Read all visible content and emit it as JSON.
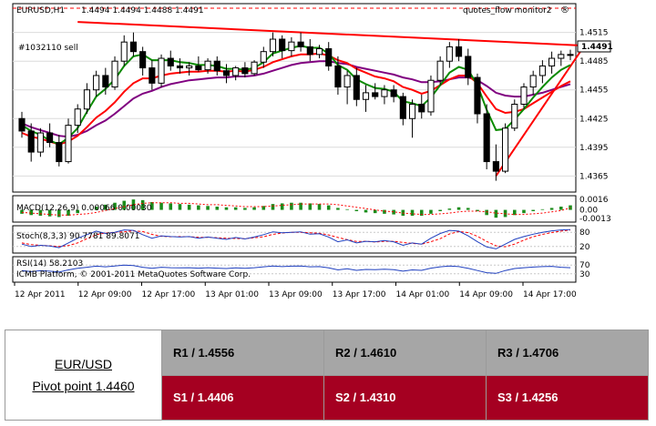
{
  "chart_data": {
    "type": "candlestick",
    "symbol_label": "EURUSD,H1",
    "ohlc_label": "1.4494 1.4494 1.4488 1.4491",
    "watermark": "quotes_flow  monitor2",
    "order_label": "#1032110 sell",
    "current_price": "1.4491",
    "ylim": [
      1.4352,
      1.4528
    ],
    "yticks": [
      "1.4515",
      "1.4485",
      "1.4455",
      "1.4425",
      "1.4395",
      "1.4365"
    ],
    "x_labels": [
      "12 Apr 2011",
      "12 Apr 09:00",
      "12 Apr 17:00",
      "13 Apr 01:00",
      "13 Apr 09:00",
      "13 Apr 17:00",
      "14 Apr 01:00",
      "14 Apr 09:00",
      "14 Apr 17:00"
    ],
    "candles": [
      [
        1.4425,
        1.4432,
        1.4405,
        1.4412
      ],
      [
        1.4412,
        1.442,
        1.438,
        1.439
      ],
      [
        1.439,
        1.4415,
        1.4385,
        1.441
      ],
      [
        1.441,
        1.442,
        1.4395,
        1.44
      ],
      [
        1.44,
        1.4408,
        1.4375,
        1.438
      ],
      [
        1.438,
        1.4425,
        1.4378,
        1.4418
      ],
      [
        1.4418,
        1.444,
        1.441,
        1.4435
      ],
      [
        1.4435,
        1.4462,
        1.443,
        1.4455
      ],
      [
        1.4455,
        1.4475,
        1.4448,
        1.447
      ],
      [
        1.447,
        1.4478,
        1.445,
        1.4458
      ],
      [
        1.4458,
        1.449,
        1.4455,
        1.4485
      ],
      [
        1.4485,
        1.4512,
        1.448,
        1.4505
      ],
      [
        1.4505,
        1.4515,
        1.449,
        1.4495
      ],
      [
        1.4495,
        1.45,
        1.447,
        1.4478
      ],
      [
        1.4478,
        1.4486,
        1.4455,
        1.4462
      ],
      [
        1.4462,
        1.4492,
        1.4458,
        1.4488
      ],
      [
        1.4488,
        1.4496,
        1.4475,
        1.448
      ],
      [
        1.448,
        1.4488,
        1.4472,
        1.4478
      ],
      [
        1.4478,
        1.4484,
        1.447,
        1.448
      ],
      [
        1.448,
        1.449,
        1.4474,
        1.4476
      ],
      [
        1.4476,
        1.4488,
        1.4472,
        1.4485
      ],
      [
        1.4485,
        1.449,
        1.447,
        1.4475
      ],
      [
        1.4475,
        1.4482,
        1.4462,
        1.447
      ],
      [
        1.447,
        1.448,
        1.4465,
        1.4478
      ],
      [
        1.4478,
        1.4484,
        1.4468,
        1.4472
      ],
      [
        1.4472,
        1.4486,
        1.447,
        1.4484
      ],
      [
        1.4484,
        1.45,
        1.4478,
        1.4495
      ],
      [
        1.4495,
        1.4515,
        1.449,
        1.4508
      ],
      [
        1.4508,
        1.4512,
        1.4488,
        1.4496
      ],
      [
        1.4496,
        1.451,
        1.449,
        1.4505
      ],
      [
        1.4505,
        1.4515,
        1.4495,
        1.45
      ],
      [
        1.45,
        1.4508,
        1.4485,
        1.4492
      ],
      [
        1.4492,
        1.4502,
        1.4488,
        1.4498
      ],
      [
        1.4498,
        1.4505,
        1.4475,
        1.448
      ],
      [
        1.448,
        1.449,
        1.445,
        1.4458
      ],
      [
        1.4458,
        1.4475,
        1.444,
        1.447
      ],
      [
        1.447,
        1.4478,
        1.4438,
        1.4445
      ],
      [
        1.4445,
        1.446,
        1.4432,
        1.4452
      ],
      [
        1.4452,
        1.4462,
        1.4445,
        1.4448
      ],
      [
        1.4448,
        1.446,
        1.444,
        1.4455
      ],
      [
        1.4455,
        1.446,
        1.4442,
        1.4448
      ],
      [
        1.4448,
        1.4452,
        1.4418,
        1.4425
      ],
      [
        1.4425,
        1.4445,
        1.4405,
        1.444
      ],
      [
        1.444,
        1.445,
        1.4425,
        1.4432
      ],
      [
        1.4432,
        1.447,
        1.4428,
        1.4465
      ],
      [
        1.4465,
        1.449,
        1.446,
        1.4485
      ],
      [
        1.4485,
        1.4505,
        1.4478,
        1.45
      ],
      [
        1.45,
        1.4508,
        1.4485,
        1.449
      ],
      [
        1.449,
        1.4498,
        1.446,
        1.4468
      ],
      [
        1.4468,
        1.4472,
        1.442,
        1.443
      ],
      [
        1.443,
        1.444,
        1.4372,
        1.438
      ],
      [
        1.438,
        1.4398,
        1.436,
        1.437
      ],
      [
        1.437,
        1.442,
        1.4368,
        1.4415
      ],
      [
        1.4415,
        1.4445,
        1.4412,
        1.444
      ],
      [
        1.444,
        1.4462,
        1.4435,
        1.4458
      ],
      [
        1.4458,
        1.4475,
        1.445,
        1.447
      ],
      [
        1.447,
        1.4486,
        1.4462,
        1.448
      ],
      [
        1.448,
        1.4495,
        1.4472,
        1.4488
      ],
      [
        1.4488,
        1.4496,
        1.448,
        1.4492
      ],
      [
        1.4492,
        1.4497,
        1.4486,
        1.4491
      ]
    ],
    "ma_fast_green": [
      1.4418,
      1.4412,
      1.4408,
      1.4402,
      1.4398,
      1.4405,
      1.4415,
      1.4432,
      1.4448,
      1.4456,
      1.4466,
      1.448,
      1.449,
      1.4492,
      1.4486,
      1.4486,
      1.4486,
      1.4484,
      1.4483,
      1.4481,
      1.4481,
      1.448,
      1.4477,
      1.4477,
      1.4476,
      1.4478,
      1.4484,
      1.4493,
      1.4496,
      1.4499,
      1.4501,
      1.4499,
      1.4499,
      1.4493,
      1.4481,
      1.4476,
      1.4466,
      1.4461,
      1.4457,
      1.4456,
      1.4453,
      1.4443,
      1.4441,
      1.4438,
      1.4447,
      1.446,
      1.4473,
      1.4479,
      1.4476,
      1.446,
      1.4434,
      1.4413,
      1.4414,
      1.4424,
      1.4435,
      1.4447,
      1.4458,
      1.4468,
      1.4476,
      1.4481
    ],
    "ma_mid_red": [
      1.441,
      1.4406,
      1.4404,
      1.4401,
      1.4398,
      1.4401,
      1.4407,
      1.4416,
      1.4426,
      1.4433,
      1.4442,
      1.4453,
      1.4462,
      1.4467,
      1.4467,
      1.447,
      1.4472,
      1.4473,
      1.4474,
      1.4474,
      1.4475,
      1.4475,
      1.4474,
      1.4475,
      1.4474,
      1.4476,
      1.4479,
      1.4484,
      1.4487,
      1.449,
      1.4492,
      1.4492,
      1.4493,
      1.4491,
      1.4486,
      1.4483,
      1.4477,
      1.4473,
      1.4469,
      1.4467,
      1.4464,
      1.4458,
      1.4455,
      1.4451,
      1.4454,
      1.446,
      1.4466,
      1.447,
      1.447,
      1.4462,
      1.4448,
      1.4435,
      1.4431,
      1.4432,
      1.4435,
      1.4441,
      1.4447,
      1.4453,
      1.4459,
      1.4464
    ],
    "ma_slow_purple": [
      1.442,
      1.4416,
      1.4413,
      1.441,
      1.4407,
      1.4406,
      1.4408,
      1.4412,
      1.4418,
      1.4423,
      1.443,
      1.4438,
      1.4446,
      1.4451,
      1.4454,
      1.4458,
      1.4461,
      1.4463,
      1.4465,
      1.4466,
      1.4467,
      1.4468,
      1.4468,
      1.4469,
      1.4469,
      1.447,
      1.4472,
      1.4475,
      1.4478,
      1.4481,
      1.4483,
      1.4484,
      1.4485,
      1.4485,
      1.4483,
      1.4482,
      1.4479,
      1.4477,
      1.4475,
      1.4473,
      1.4471,
      1.4468,
      1.4466,
      1.4463,
      1.4463,
      1.4464,
      1.4466,
      1.4468,
      1.4468,
      1.4465,
      1.4459,
      1.4452,
      1.4449,
      1.4448,
      1.4448,
      1.445,
      1.4452,
      1.4455,
      1.4458,
      1.4461
    ],
    "resistance_line": [
      [
        6,
        1.4526
      ],
      [
        59,
        1.449
      ]
    ],
    "support_line": [
      [
        51,
        1.4365
      ],
      [
        59,
        1.4485
      ]
    ],
    "macd": {
      "label": "MACD(12,26,9) 0.00066 0.00030",
      "yticks": [
        "0.0016",
        "0.00",
        "-0.0013"
      ],
      "ylim": [
        -0.0016,
        0.0019
      ],
      "values": [
        -0.0006,
        -0.0008,
        -0.0009,
        -0.001,
        -0.0011,
        -0.0009,
        -0.0005,
        0.0,
        0.0005,
        0.0008,
        0.0011,
        0.0014,
        0.0016,
        0.0015,
        0.0012,
        0.0011,
        0.001,
        0.0009,
        0.0008,
        0.0007,
        0.0006,
        0.0005,
        0.0004,
        0.0004,
        0.0003,
        0.0004,
        0.0006,
        0.0009,
        0.001,
        0.0011,
        0.0011,
        0.001,
        0.0009,
        0.0007,
        0.0003,
        0.0001,
        -0.0002,
        -0.0004,
        -0.0005,
        -0.0006,
        -0.0007,
        -0.0009,
        -0.0009,
        -0.0009,
        -0.0006,
        -0.0002,
        0.0002,
        0.0004,
        0.0003,
        -0.0002,
        -0.0008,
        -0.0012,
        -0.0011,
        -0.0008,
        -0.0005,
        -0.0002,
        0.0001,
        0.0003,
        0.0005,
        0.0007
      ],
      "signal": [
        -0.0004,
        -0.0005,
        -0.0006,
        -0.0007,
        -0.0008,
        -0.0008,
        -0.0007,
        -0.0006,
        -0.0004,
        -0.0001,
        0.0002,
        0.0005,
        0.0008,
        0.001,
        0.0011,
        0.0011,
        0.0011,
        0.001,
        0.001,
        0.0009,
        0.0008,
        0.0008,
        0.0007,
        0.0006,
        0.0005,
        0.0005,
        0.0005,
        0.0006,
        0.0007,
        0.0008,
        0.0009,
        0.0009,
        0.0009,
        0.0009,
        0.0008,
        0.0006,
        0.0004,
        0.0002,
        0.0,
        -0.0002,
        -0.0003,
        -0.0005,
        -0.0006,
        -0.0007,
        -0.0007,
        -0.0006,
        -0.0005,
        -0.0003,
        -0.0002,
        -0.0002,
        -0.0003,
        -0.0005,
        -0.0006,
        -0.0007,
        -0.0007,
        -0.0006,
        -0.0005,
        -0.0003,
        -0.0001,
        0.0003
      ]
    },
    "stoch": {
      "label": "Stoch(8,3,3) 90.7781 89.8071",
      "yticks": [
        "80",
        "20"
      ],
      "ylim": [
        0,
        100
      ],
      "k": [
        30,
        20,
        25,
        22,
        15,
        35,
        55,
        70,
        85,
        75,
        80,
        90,
        88,
        70,
        55,
        65,
        62,
        60,
        62,
        55,
        60,
        55,
        50,
        58,
        52,
        60,
        70,
        82,
        78,
        80,
        82,
        72,
        74,
        60,
        40,
        48,
        35,
        42,
        40,
        45,
        40,
        25,
        35,
        30,
        55,
        75,
        88,
        85,
        65,
        40,
        18,
        10,
        30,
        50,
        62,
        72,
        80,
        86,
        90,
        91
      ],
      "d": [
        35,
        28,
        25,
        23,
        20,
        24,
        35,
        53,
        70,
        77,
        80,
        82,
        86,
        83,
        71,
        63,
        61,
        62,
        61,
        59,
        59,
        57,
        55,
        54,
        53,
        57,
        61,
        71,
        77,
        80,
        80,
        78,
        76,
        69,
        58,
        49,
        41,
        42,
        39,
        42,
        42,
        37,
        33,
        30,
        40,
        53,
        73,
        83,
        79,
        63,
        41,
        23,
        19,
        30,
        47,
        61,
        71,
        79,
        85,
        90
      ]
    },
    "rsi": {
      "label": "RSI(14) 58.2103",
      "copyright": "ICMB Platform, © 2001-2011 MetaQuotes Software Corp.",
      "yticks": [
        "70",
        "30"
      ],
      "ylim": [
        0,
        100
      ],
      "values": [
        45,
        40,
        44,
        42,
        38,
        48,
        55,
        60,
        65,
        62,
        66,
        70,
        68,
        60,
        55,
        60,
        58,
        57,
        58,
        56,
        58,
        56,
        54,
        57,
        55,
        58,
        62,
        66,
        63,
        65,
        66,
        62,
        63,
        57,
        48,
        53,
        46,
        50,
        49,
        51,
        49,
        42,
        48,
        46,
        56,
        62,
        66,
        63,
        55,
        45,
        35,
        32,
        45,
        54,
        58,
        61,
        63,
        64,
        60,
        58
      ]
    },
    "colors": {
      "ma_fast": "#0a8a00",
      "ma_mid": "#ff0000",
      "ma_slow": "#800080",
      "trendline": "#ff0000",
      "bull_body": "#ffffff",
      "bear_body": "#000000"
    }
  },
  "pivot": {
    "pair": "EUR/USD",
    "pivot_point": "Pivot point 1.4460",
    "r1": "R1 / 1.4556",
    "r2": "R2 / 1.4610",
    "r3": "R3 / 1.4706",
    "s1": "S1 / 1.4406",
    "s2": "S2 / 1.4310",
    "s3": "S3 / 1.4256"
  }
}
